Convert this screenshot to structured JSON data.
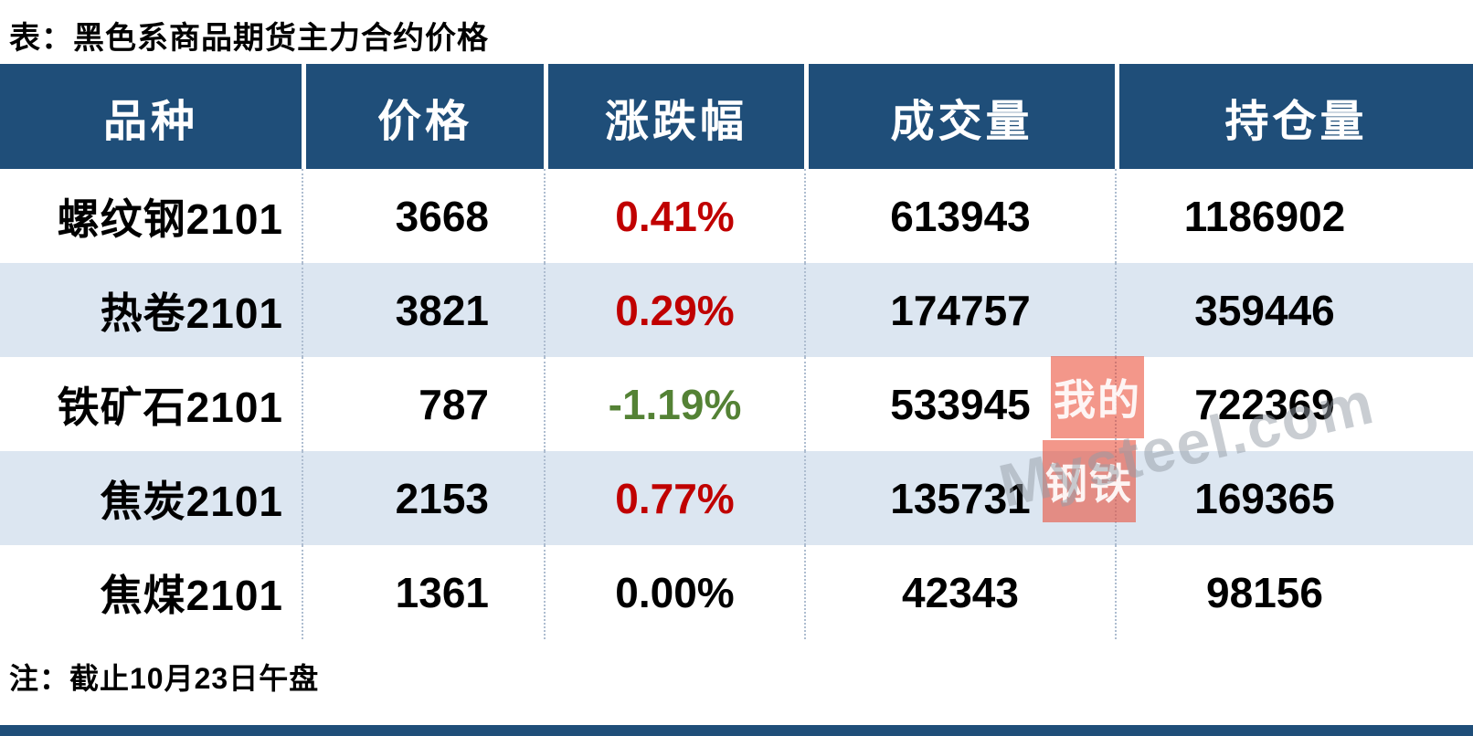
{
  "title": "表：黑色系商品期货主力合约价格",
  "note": "注：截止10月23日午盘",
  "colors": {
    "header_bg": "#1F4E79",
    "header_text": "#FFFFFF",
    "row_alt_bg": "#DCE6F1",
    "row_bg": "#FFFFFF",
    "up_red": "#C00000",
    "down_green": "#548235",
    "flat_black": "#000000",
    "bottom_bar": "#1F4E79",
    "column_divider": "#AEBDD0"
  },
  "chart_data": {
    "type": "table",
    "title": "表：黑色系商品期货主力合约价格",
    "columns": [
      "品种",
      "价格",
      "涨跌幅",
      "成交量",
      "持仓量"
    ],
    "rows": [
      [
        "螺纹钢2101",
        3668,
        "0.41%",
        613943,
        1186902
      ],
      [
        "热卷2101",
        3821,
        "0.29%",
        174757,
        359446
      ],
      [
        "铁矿石2101",
        787,
        "-1.19%",
        533945,
        722369
      ],
      [
        "焦炭2101",
        2153,
        "0.77%",
        135731,
        169365
      ],
      [
        "焦煤2101",
        1361,
        "0.00%",
        42343,
        98156
      ]
    ],
    "change_colors": [
      "#C00000",
      "#C00000",
      "#548235",
      "#C00000",
      "#000000"
    ],
    "footnote": "注：截止10月23日午盘"
  },
  "watermark": {
    "block1": "我的",
    "block2": "钢铁",
    "text": "Mysteel.com"
  }
}
